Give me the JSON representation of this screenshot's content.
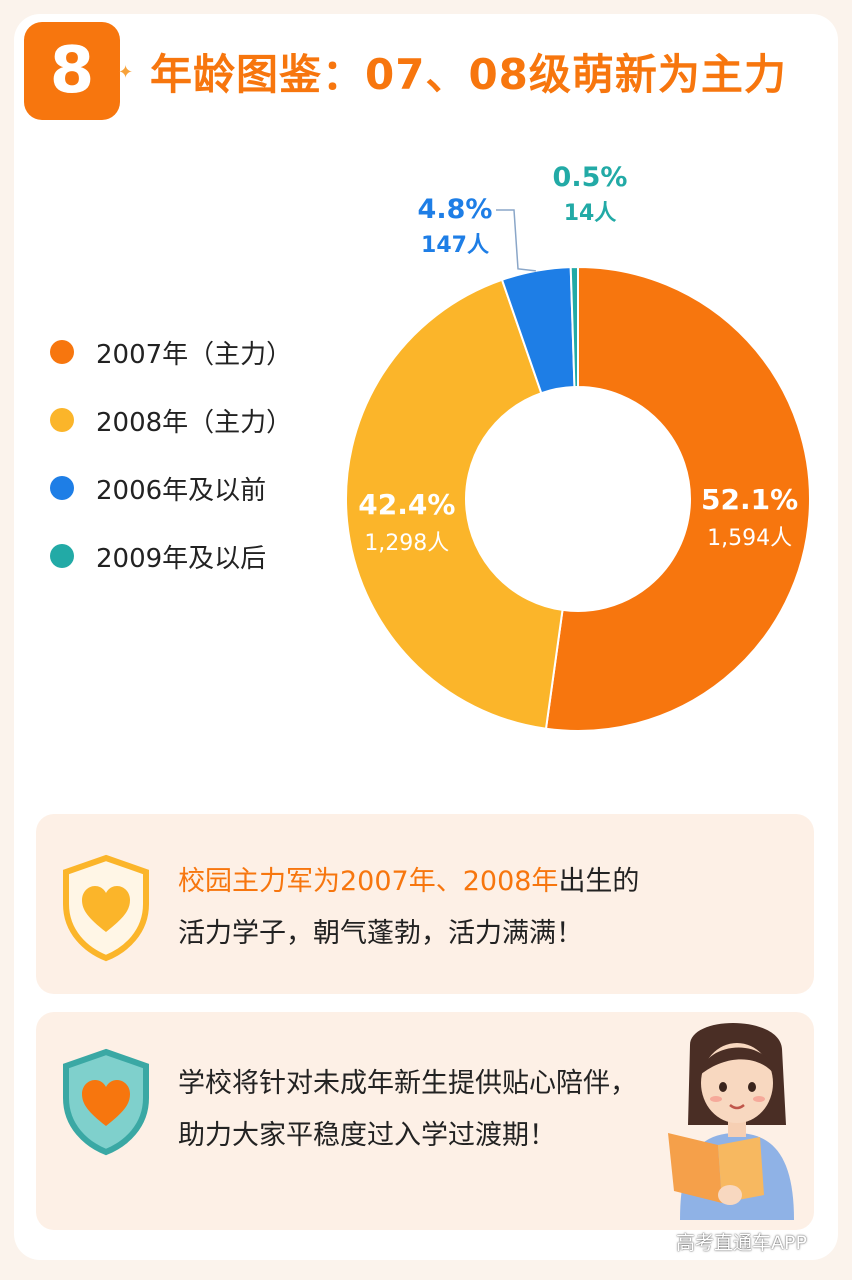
{
  "header": {
    "number": "8",
    "title": "年龄图鉴：07、08级萌新为主力"
  },
  "chart_data": {
    "type": "pie",
    "donut": true,
    "categories": [
      "2007年（主力）",
      "2008年（主力）",
      "2006年及以前",
      "2009年及以后"
    ],
    "values": [
      52.1,
      42.4,
      4.8,
      0.5
    ],
    "counts": [
      "1,594人",
      "1,298人",
      "147人",
      "14人"
    ],
    "percent_labels": [
      "52.1%",
      "42.4%",
      "4.8%",
      "0.5%"
    ],
    "colors": [
      "#f7760e",
      "#fbb52a",
      "#1e7ee6",
      "#22aaa6"
    ],
    "legend_position": "left"
  },
  "notes": {
    "note1": {
      "highlight": "校园主力军为2007年、2008年",
      "rest": "出生的",
      "line2": "活力学子，朝气蓬勃，活力满满！"
    },
    "note2": {
      "line1": "学校将针对未成年新生提供贴心陪伴，",
      "line2": "助力大家平稳度过入学过渡期！"
    }
  },
  "watermark": "高考直通车APP"
}
